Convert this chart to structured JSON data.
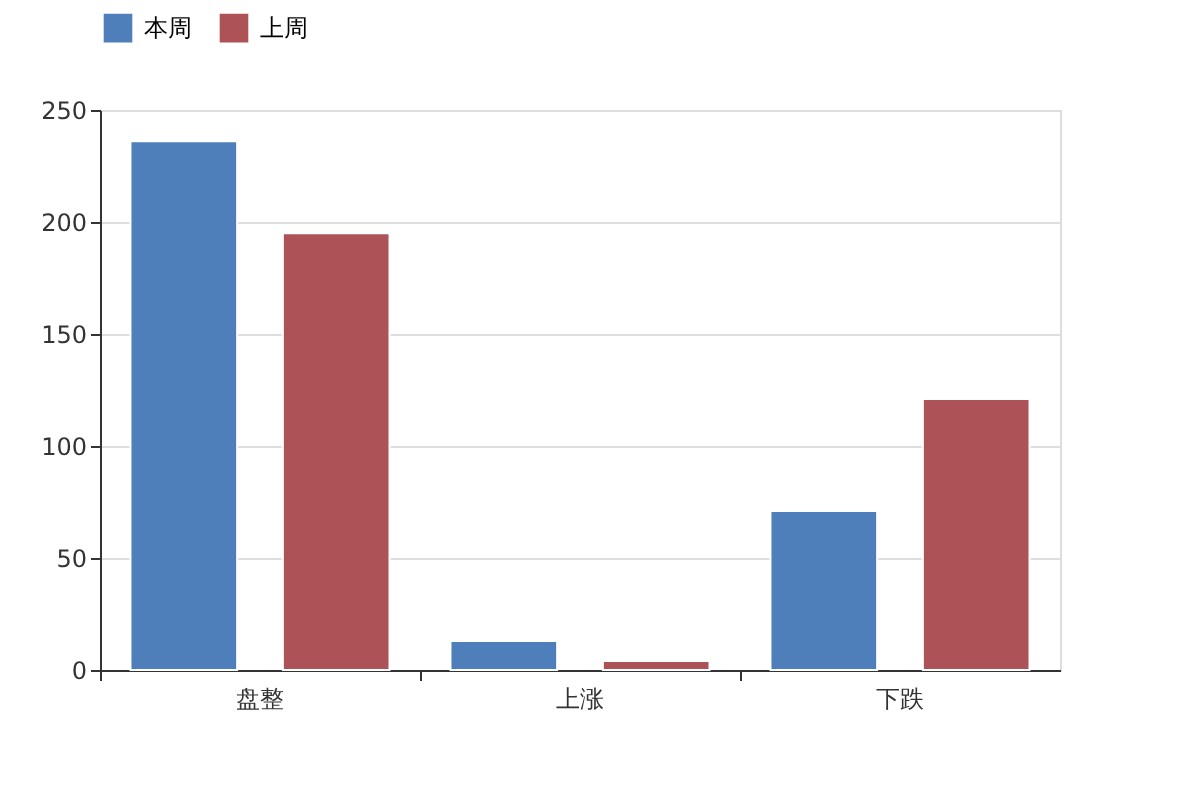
{
  "chart_data": {
    "type": "bar",
    "categories": [
      "盘整",
      "上涨",
      "下跌"
    ],
    "series": [
      {
        "name": "本周",
        "color": "#4e7fbb",
        "values": [
          236,
          13,
          71
        ]
      },
      {
        "name": "上周",
        "color": "#ad5256",
        "values": [
          195,
          4,
          121
        ]
      }
    ],
    "ylim": [
      0,
      250
    ],
    "yticks": [
      0,
      50,
      100,
      150,
      200,
      250
    ],
    "grid": "y",
    "legend": "top"
  }
}
